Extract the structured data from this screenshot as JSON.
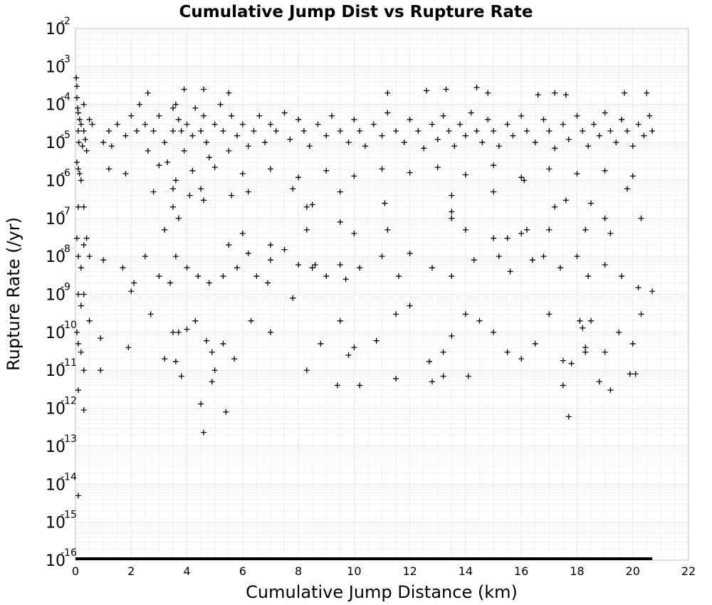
{
  "chart_data": {
    "type": "scatter",
    "title": "Cumulative Jump Dist vs Rupture Rate",
    "xlabel": "Cumulative Jump Distance (km)",
    "ylabel": "Rupture Rate (/yr)",
    "xlim": [
      0,
      22
    ],
    "ylim": [
      1e-16,
      0.01
    ],
    "yscale": "log",
    "grid": true,
    "legend": "none",
    "marker": "plus",
    "marker_color": "#000000",
    "x_ticks": [
      "0",
      "2",
      "4",
      "6",
      "8",
      "10",
      "12",
      "14",
      "16",
      "18",
      "20",
      "22"
    ],
    "y_ticks": [
      {
        "base": "10",
        "exp": "-2",
        "value": 0.01
      },
      {
        "base": "10",
        "exp": "-3",
        "value": 0.001
      },
      {
        "base": "10",
        "exp": "-4",
        "value": 0.0001
      },
      {
        "base": "10",
        "exp": "-5",
        "value": 1e-05
      },
      {
        "base": "10",
        "exp": "-6",
        "value": 1e-06
      },
      {
        "base": "10",
        "exp": "-7",
        "value": 1e-07
      },
      {
        "base": "10",
        "exp": "-8",
        "value": 1e-08
      },
      {
        "base": "10",
        "exp": "-9",
        "value": 1e-09
      },
      {
        "base": "10",
        "exp": "-10",
        "value": 1e-10
      },
      {
        "base": "10",
        "exp": "-11",
        "value": 1e-11
      },
      {
        "base": "10",
        "exp": "-12",
        "value": 1e-12
      },
      {
        "base": "10",
        "exp": "-13",
        "value": 1e-13
      },
      {
        "base": "10",
        "exp": "-14",
        "value": 1e-14
      },
      {
        "base": "10",
        "exp": "-15",
        "value": 1e-15
      },
      {
        "base": "10",
        "exp": "-16",
        "value": 1e-16
      }
    ],
    "floor_segment": {
      "x": [
        0,
        20.7
      ],
      "y": 1e-16
    },
    "points": [
      [
        0.03,
        0.0005
      ],
      [
        0.05,
        0.0003
      ],
      [
        0.05,
        0.00015
      ],
      [
        0.08,
        8e-05
      ],
      [
        0.1,
        6e-05
      ],
      [
        0.1,
        2e-05
      ],
      [
        0.12,
        1e-05
      ],
      [
        0.15,
        4e-05
      ],
      [
        0.2,
        3e-05
      ],
      [
        0.25,
        8e-06
      ],
      [
        0.3,
        2e-05
      ],
      [
        0.35,
        1.2e-05
      ],
      [
        0.4,
        6e-06
      ],
      [
        0.5,
        4e-05
      ],
      [
        0.6,
        3e-05
      ],
      [
        0.3,
        0.0001
      ],
      [
        0.05,
        3e-06
      ],
      [
        0.1,
        2e-06
      ],
      [
        0.15,
        1.5e-06
      ],
      [
        0.2,
        1e-06
      ],
      [
        0.1,
        2e-07
      ],
      [
        0.3,
        2e-07
      ],
      [
        0.05,
        3e-08
      ],
      [
        0.1,
        1e-08
      ],
      [
        0.2,
        5e-09
      ],
      [
        0.3,
        2e-08
      ],
      [
        0.4,
        3e-08
      ],
      [
        0.5,
        1e-08
      ],
      [
        0.1,
        1e-09
      ],
      [
        0.2,
        5e-10
      ],
      [
        0.3,
        1e-09
      ],
      [
        0.05,
        1e-10
      ],
      [
        0.1,
        5e-11
      ],
      [
        0.2,
        3e-11
      ],
      [
        0.3,
        1e-11
      ],
      [
        0.1,
        3e-12
      ],
      [
        0.3,
        9e-13
      ],
      [
        0.1,
        5e-15
      ],
      [
        0.5,
        2e-10
      ],
      [
        0.9,
        7e-11
      ],
      [
        0.9,
        1e-11
      ],
      [
        1.0,
        1e-05
      ],
      [
        1.2,
        2e-05
      ],
      [
        1.3,
        8e-06
      ],
      [
        1.5,
        3e-05
      ],
      [
        1.8,
        1.5e-05
      ],
      [
        2.0,
        5e-05
      ],
      [
        2.2,
        2e-05
      ],
      [
        2.3,
        0.0001
      ],
      [
        2.5,
        3e-05
      ],
      [
        2.6,
        6e-06
      ],
      [
        2.8,
        2e-05
      ],
      [
        3.0,
        5e-05
      ],
      [
        3.2,
        1e-05
      ],
      [
        3.3,
        3e-06
      ],
      [
        3.5,
        8e-05
      ],
      [
        3.5,
        2e-05
      ],
      [
        3.6,
        0.0001
      ],
      [
        3.7,
        4e-05
      ],
      [
        3.8,
        2e-05
      ],
      [
        3.9,
        6e-06
      ],
      [
        4.0,
        3e-05
      ],
      [
        4.2,
        1.5e-05
      ],
      [
        4.3,
        8e-05
      ],
      [
        4.5,
        2e-05
      ],
      [
        4.6,
        5e-05
      ],
      [
        4.7,
        1e-05
      ],
      [
        4.8,
        4e-06
      ],
      [
        5.0,
        3e-05
      ],
      [
        5.2,
        0.0001
      ],
      [
        5.3,
        2e-05
      ],
      [
        5.5,
        6e-06
      ],
      [
        5.6,
        5e-05
      ],
      [
        5.8,
        1.5e-05
      ],
      [
        6.0,
        3e-05
      ],
      [
        6.2,
        8e-06
      ],
      [
        6.4,
        2e-05
      ],
      [
        6.6,
        5e-05
      ],
      [
        6.8,
        1e-05
      ],
      [
        7.0,
        3e-05
      ],
      [
        7.2,
        2e-05
      ],
      [
        7.5,
        6e-05
      ],
      [
        7.7,
        1.2e-05
      ],
      [
        8.0,
        4e-05
      ],
      [
        8.2,
        2e-05
      ],
      [
        8.4,
        8e-06
      ],
      [
        8.7,
        3e-05
      ],
      [
        9.0,
        1.5e-05
      ],
      [
        9.2,
        5e-05
      ],
      [
        9.5,
        2e-05
      ],
      [
        9.8,
        1e-05
      ],
      [
        10.0,
        4e-05
      ],
      [
        10.2,
        2e-05
      ],
      [
        10.4,
        8e-06
      ],
      [
        10.7,
        3e-05
      ],
      [
        11.0,
        1.5e-05
      ],
      [
        11.2,
        6e-05
      ],
      [
        11.5,
        2e-05
      ],
      [
        11.8,
        1e-05
      ],
      [
        12.0,
        4e-05
      ],
      [
        12.3,
        2e-05
      ],
      [
        12.5,
        7e-06
      ],
      [
        12.8,
        3e-05
      ],
      [
        13.0,
        1.2e-05
      ],
      [
        13.2,
        5e-05
      ],
      [
        13.4,
        2e-05
      ],
      [
        13.6,
        8e-06
      ],
      [
        13.8,
        3e-05
      ],
      [
        14.0,
        1.5e-05
      ],
      [
        14.2,
        6e-05
      ],
      [
        14.4,
        2e-05
      ],
      [
        14.6,
        1e-05
      ],
      [
        14.8,
        4e-05
      ],
      [
        15.0,
        2e-05
      ],
      [
        15.2,
        8e-06
      ],
      [
        15.5,
        3e-05
      ],
      [
        15.7,
        1.5e-05
      ],
      [
        16.0,
        5e-05
      ],
      [
        16.2,
        2e-05
      ],
      [
        16.5,
        1e-05
      ],
      [
        16.8,
        4e-05
      ],
      [
        17.0,
        2e-05
      ],
      [
        17.2,
        7e-06
      ],
      [
        17.5,
        3e-05
      ],
      [
        17.7,
        1.2e-05
      ],
      [
        18.0,
        5e-05
      ],
      [
        18.2,
        2e-05
      ],
      [
        18.4,
        8e-06
      ],
      [
        18.6,
        3e-05
      ],
      [
        18.8,
        1.5e-05
      ],
      [
        19.0,
        6e-05
      ],
      [
        19.2,
        2e-05
      ],
      [
        19.4,
        1e-05
      ],
      [
        19.6,
        4e-05
      ],
      [
        19.8,
        2e-05
      ],
      [
        20.0,
        8e-06
      ],
      [
        20.2,
        3e-05
      ],
      [
        20.4,
        1.5e-05
      ],
      [
        20.6,
        5e-05
      ],
      [
        20.7,
        2e-05
      ],
      [
        1.2,
        2e-06
      ],
      [
        1.8,
        1.5e-06
      ],
      [
        3.0,
        2.5e-06
      ],
      [
        3.6,
        1e-06
      ],
      [
        4.2,
        1.8e-06
      ],
      [
        5.0,
        2.2e-06
      ],
      [
        6.0,
        1.5e-06
      ],
      [
        7.0,
        2e-06
      ],
      [
        8.0,
        1.2e-06
      ],
      [
        9.0,
        1.8e-06
      ],
      [
        10.0,
        1.3e-06
      ],
      [
        11.0,
        2e-06
      ],
      [
        12.0,
        1.6e-06
      ],
      [
        13.0,
        2.2e-06
      ],
      [
        14.0,
        1.4e-06
      ],
      [
        15.0,
        2.5e-06
      ],
      [
        16.0,
        1.2e-06
      ],
      [
        17.0,
        2e-06
      ],
      [
        18.0,
        1.5e-06
      ],
      [
        19.0,
        1.8e-06
      ],
      [
        20.0,
        1.3e-06
      ],
      [
        2.6,
        0.0002
      ],
      [
        3.9,
        0.00025
      ],
      [
        4.6,
        0.00025
      ],
      [
        5.5,
        0.0002
      ],
      [
        11.2,
        0.0002
      ],
      [
        12.6,
        0.00023
      ],
      [
        13.3,
        0.00025
      ],
      [
        14.4,
        0.00028
      ],
      [
        14.8,
        0.0002
      ],
      [
        16.6,
        0.00018
      ],
      [
        17.2,
        0.0002
      ],
      [
        17.6,
        0.00018
      ],
      [
        19.7,
        0.0002
      ],
      [
        20.5,
        0.0002
      ],
      [
        2.8,
        5e-07
      ],
      [
        3.5,
        6e-07
      ],
      [
        4.1,
        4e-07
      ],
      [
        4.5,
        6e-07
      ],
      [
        4.6,
        3e-07
      ],
      [
        5.6,
        4e-07
      ],
      [
        6.2,
        5e-07
      ],
      [
        7.8,
        6e-07
      ],
      [
        8.3,
        2e-07
      ],
      [
        8.5,
        2.3e-07
      ],
      [
        9.5,
        5e-07
      ],
      [
        11.1,
        2.5e-07
      ],
      [
        13.5,
        4e-07
      ],
      [
        13.5,
        1.5e-07
      ],
      [
        15.0,
        5e-07
      ],
      [
        17.6,
        3e-07
      ],
      [
        18.5,
        2.5e-07
      ],
      [
        17.2,
        2e-07
      ],
      [
        16.1,
        1e-06
      ],
      [
        19.8,
        6e-07
      ],
      [
        3.2,
        5e-08
      ],
      [
        3.5,
        2e-07
      ],
      [
        3.7,
        1e-07
      ],
      [
        5.5,
        2e-08
      ],
      [
        6.0,
        4e-08
      ],
      [
        7.0,
        2e-08
      ],
      [
        8.3,
        5e-08
      ],
      [
        9.5,
        8e-08
      ],
      [
        10.0,
        4e-08
      ],
      [
        11.2,
        5e-08
      ],
      [
        13.5,
        1e-07
      ],
      [
        14.0,
        5e-08
      ],
      [
        15.0,
        3e-08
      ],
      [
        15.5,
        3e-08
      ],
      [
        16.0,
        4e-08
      ],
      [
        16.2,
        5e-08
      ],
      [
        17.0,
        5e-08
      ],
      [
        18.3,
        5e-08
      ],
      [
        19.0,
        1e-07
      ],
      [
        19.2,
        4e-08
      ],
      [
        20.3,
        1e-07
      ],
      [
        1.7,
        5e-09
      ],
      [
        2.0,
        1.2e-09
      ],
      [
        2.5,
        1e-08
      ],
      [
        3.0,
        3e-09
      ],
      [
        3.4,
        2e-09
      ],
      [
        3.6,
        1e-08
      ],
      [
        4.0,
        5e-09
      ],
      [
        4.4,
        3e-09
      ],
      [
        4.8,
        2e-09
      ],
      [
        5.3,
        3e-09
      ],
      [
        5.8,
        5e-09
      ],
      [
        6.2,
        1.2e-08
      ],
      [
        6.5,
        3e-09
      ],
      [
        7.0,
        8e-09
      ],
      [
        7.5,
        1.5e-08
      ],
      [
        8.0,
        6e-09
      ],
      [
        8.5,
        5e-09
      ],
      [
        9.0,
        3e-09
      ],
      [
        9.5,
        6e-09
      ],
      [
        10.2,
        5e-09
      ],
      [
        11.0,
        1e-08
      ],
      [
        12.0,
        1.2e-08
      ],
      [
        12.8,
        5e-09
      ],
      [
        13.5,
        3e-09
      ],
      [
        14.3,
        8e-09
      ],
      [
        15.2,
        1e-08
      ],
      [
        15.6,
        4e-09
      ],
      [
        16.4,
        8e-09
      ],
      [
        16.8,
        1e-08
      ],
      [
        17.4,
        5e-09
      ],
      [
        18.0,
        1e-08
      ],
      [
        18.4,
        3e-09
      ],
      [
        19.0,
        6e-09
      ],
      [
        19.6,
        3e-09
      ],
      [
        20.2,
        1.5e-09
      ],
      [
        20.7,
        1.2e-09
      ],
      [
        2.7,
        3e-10
      ],
      [
        3.5,
        1e-10
      ],
      [
        3.7,
        1e-10
      ],
      [
        4.0,
        1.2e-10
      ],
      [
        4.3,
        2e-10
      ],
      [
        4.7,
        6e-11
      ],
      [
        4.9,
        3e-11
      ],
      [
        5.0,
        1e-11
      ],
      [
        5.3,
        5e-11
      ],
      [
        5.7,
        2e-11
      ],
      [
        6.3,
        2e-10
      ],
      [
        7.0,
        1e-10
      ],
      [
        7.8,
        8e-10
      ],
      [
        8.3,
        1e-11
      ],
      [
        8.8,
        5e-11
      ],
      [
        9.5,
        2e-10
      ],
      [
        9.8,
        2.5e-11
      ],
      [
        10.0,
        4e-11
      ],
      [
        10.8,
        6e-11
      ],
      [
        11.5,
        3e-10
      ],
      [
        12.0,
        5e-10
      ],
      [
        12.7,
        1.7e-11
      ],
      [
        13.2,
        3e-11
      ],
      [
        13.5,
        8e-11
      ],
      [
        14.0,
        3e-10
      ],
      [
        14.5,
        2e-10
      ],
      [
        15.0,
        1e-10
      ],
      [
        15.5,
        3e-11
      ],
      [
        16.0,
        2e-11
      ],
      [
        16.5,
        5e-11
      ],
      [
        17.0,
        3e-10
      ],
      [
        17.5,
        1.8e-11
      ],
      [
        17.8,
        1.5e-11
      ],
      [
        18.3,
        3e-11
      ],
      [
        18.5,
        2e-10
      ],
      [
        19.0,
        3e-11
      ],
      [
        19.5,
        1e-10
      ],
      [
        20.0,
        5e-11
      ],
      [
        20.3,
        3e-10
      ],
      [
        3.2,
        2e-11
      ],
      [
        3.6,
        1.7e-11
      ],
      [
        3.8,
        7e-12
      ],
      [
        4.9,
        5e-12
      ],
      [
        9.4,
        4e-12
      ],
      [
        10.2,
        4e-12
      ],
      [
        11.5,
        6e-12
      ],
      [
        12.8,
        5e-12
      ],
      [
        13.2,
        7e-12
      ],
      [
        14.1,
        7e-12
      ],
      [
        17.5,
        4e-12
      ],
      [
        18.8,
        5e-12
      ],
      [
        19.2,
        3e-12
      ],
      [
        19.9,
        8e-12
      ],
      [
        4.5,
        1.3e-12
      ],
      [
        5.4,
        8e-13
      ],
      [
        4.6,
        2.3e-13
      ],
      [
        17.7,
        6e-13
      ],
      [
        18.3,
        4e-11
      ],
      [
        18.2,
        1.3e-10
      ],
      [
        18.1,
        2e-10
      ],
      [
        20.1,
        8e-12
      ],
      [
        1.9,
        4e-11
      ],
      [
        1.0,
        8e-09
      ],
      [
        2.1,
        2e-09
      ],
      [
        6.9,
        2e-09
      ],
      [
        8.6,
        6e-09
      ],
      [
        9.7,
        2.5e-09
      ],
      [
        11.6,
        3e-09
      ]
    ]
  }
}
